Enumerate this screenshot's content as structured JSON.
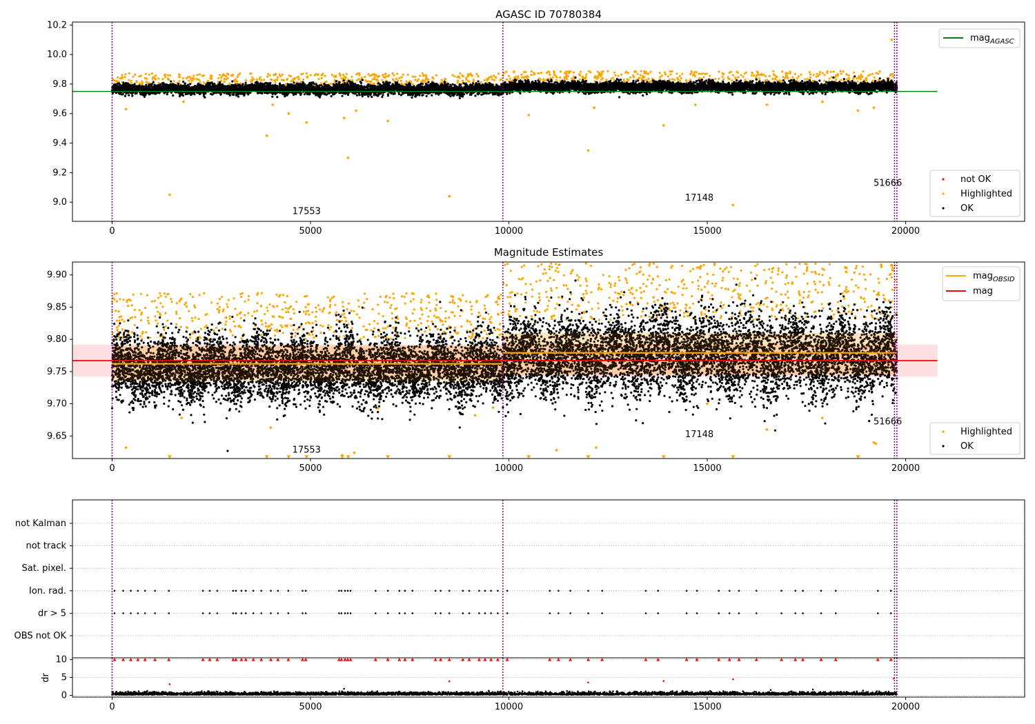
{
  "figure": {
    "style": {
      "ok": "#000000",
      "highlighted": "#ffa500",
      "not_ok": "#ff0000",
      "obs_line": "#800080",
      "agasc_line": "#008000",
      "mag_line": "#ff0000",
      "obsid_line": "#ffa500"
    }
  },
  "chart_data": [
    {
      "type": "scatter",
      "title": "AGASC ID 70780384",
      "xlim": [
        -1000,
        23000
      ],
      "ylim": [
        8.87,
        10.22
      ],
      "xticks": [
        0,
        5000,
        10000,
        15000,
        20000
      ],
      "yticks": [
        "9.0",
        "9.2",
        "9.4",
        "9.6",
        "9.8",
        "10.0",
        "10.2"
      ],
      "legend": {
        "location": "upper right",
        "entries": [
          {
            "label": "mag",
            "sub": "AGASC"
          }
        ]
      },
      "legend_lower": {
        "location": "lower right",
        "entries": [
          "not OK",
          "Highlighted",
          "OK"
        ]
      },
      "obs_boundaries": [
        0,
        9850,
        19720,
        19780
      ],
      "obs_labels": [
        {
          "text": "17553",
          "x": 4900,
          "y": 8.92
        },
        {
          "text": "17148",
          "x": 14800,
          "y": 9.01
        },
        {
          "text": "51666",
          "x": 19550,
          "y": 9.11
        }
      ],
      "mag_agasc": 9.75,
      "mag_agasc_x": [
        -1000,
        20800
      ],
      "series": [
        {
          "name": "OK",
          "segments": [
            {
              "x": [
                0,
                9850
              ],
              "y_center": 9.765,
              "spread": 0.03
            },
            {
              "x": [
                9850,
                19780
              ],
              "y_center": 9.78,
              "spread": 0.03
            }
          ]
        },
        {
          "name": "Highlighted",
          "x": [
            350,
            1450,
            1800,
            3900,
            4050,
            4450,
            4900,
            5850,
            5950,
            6150,
            6950,
            8500,
            10500,
            12000,
            12150,
            13900,
            14700,
            15650,
            16500,
            17900,
            18800,
            19200,
            19650
          ],
          "y": [
            9.63,
            9.05,
            9.68,
            9.45,
            9.66,
            9.6,
            9.54,
            9.57,
            9.3,
            9.62,
            9.55,
            9.04,
            9.59,
            9.35,
            9.64,
            9.52,
            9.66,
            8.98,
            9.66,
            9.68,
            9.62,
            9.64,
            10.1
          ]
        }
      ]
    },
    {
      "type": "scatter",
      "title": "Magnitude Estimates",
      "xlim": [
        -1000,
        23000
      ],
      "ylim": [
        9.615,
        9.92
      ],
      "xticks": [
        0,
        5000,
        10000,
        15000,
        20000
      ],
      "yticks": [
        "9.65",
        "9.70",
        "9.75",
        "9.80",
        "9.85",
        "9.90"
      ],
      "legend": {
        "location": "upper right",
        "entries": [
          {
            "label": "mag",
            "sub": "OBSID"
          },
          {
            "label": "mag",
            "sub": ""
          }
        ]
      },
      "legend_lower": {
        "location": "lower right",
        "entries": [
          "Highlighted",
          "OK"
        ]
      },
      "obs_boundaries": [
        0,
        9850,
        19720,
        19780
      ],
      "obs_labels": [
        {
          "text": "17553",
          "x": 4900,
          "y": 9.624
        },
        {
          "text": "17148",
          "x": 14800,
          "y": 9.648
        },
        {
          "text": "51666",
          "x": 19550,
          "y": 9.668
        }
      ],
      "mag": 9.767,
      "mag_band": [
        9.742,
        9.792
      ],
      "mag_x": [
        -1000,
        20800
      ],
      "mag_obsid": [
        {
          "x": [
            0,
            9850
          ],
          "y": 9.762,
          "band": [
            9.735,
            9.79
          ]
        },
        {
          "x": [
            9850,
            19780
          ],
          "y": 9.779,
          "band": [
            9.745,
            9.81
          ]
        }
      ],
      "series": [
        {
          "name": "OK",
          "segments": [
            {
              "x": [
                0,
                9850
              ],
              "y_center": 9.755,
              "spread": 0.045
            },
            {
              "x": [
                9850,
                19780
              ],
              "y_center": 9.775,
              "spread": 0.055
            }
          ]
        },
        {
          "name": "Highlighted",
          "x": [
            350,
            1750,
            4000,
            5800,
            6100,
            6700,
            9150,
            9600,
            11200,
            12200,
            15000,
            16500,
            17900,
            19200,
            19250
          ],
          "y": [
            9.632,
            9.678,
            9.663,
            9.62,
            9.624,
            9.693,
            9.682,
            9.694,
            9.628,
            9.632,
            9.7,
            9.66,
            9.678,
            9.64,
            9.638
          ]
        },
        {
          "name": "Highlighted-lower-limit",
          "x": [
            1450,
            3900,
            4450,
            4900,
            5800,
            5950,
            6950,
            8500,
            10500,
            12000,
            13900,
            15650,
            18800
          ],
          "y": [
            9.618,
            9.618,
            9.618,
            9.618,
            9.618,
            9.618,
            9.618,
            9.618,
            9.618,
            9.618,
            9.618,
            9.618,
            9.618
          ]
        }
      ]
    },
    {
      "type": "scatter",
      "title": "",
      "xlim": [
        -1000,
        23000
      ],
      "categories": [
        "OBS not OK",
        "dr > 5",
        "Ion. rad.",
        "Sat. pixel.",
        "not track",
        "not Kalman"
      ],
      "flag_rows": [
        {
          "name": "dr > 5",
          "x": [
            60,
            280,
            470,
            650,
            830,
            1080,
            1430,
            2290,
            2460,
            2650,
            3050,
            3120,
            3260,
            3370,
            3560,
            3760,
            4000,
            4180,
            4440,
            4800,
            4880,
            5720,
            5780,
            5870,
            5940,
            6010,
            6640,
            6950,
            7240,
            7380,
            7570,
            8150,
            8280,
            8500,
            8840,
            9000,
            9250,
            9400,
            9550,
            9720,
            9960,
            11030,
            11250,
            11550,
            12000,
            12350,
            13450,
            13760,
            14480,
            14740,
            15290,
            15560,
            15800,
            16240,
            16870,
            17220,
            17410,
            17870,
            18240,
            19300,
            19630
          ]
        },
        {
          "name": "Ion. rad.",
          "x": [
            60,
            280,
            470,
            650,
            830,
            1080,
            1430,
            2290,
            2460,
            2650,
            3050,
            3120,
            3260,
            3370,
            3560,
            3760,
            4000,
            4180,
            4440,
            4800,
            4880,
            5720,
            5780,
            5870,
            5940,
            6010,
            6640,
            6950,
            7240,
            7380,
            7570,
            8150,
            8280,
            8500,
            8840,
            9000,
            9250,
            9400,
            9550,
            9720,
            9960,
            11030,
            11250,
            11550,
            12000,
            12350,
            13450,
            13760,
            14480,
            14740,
            15290,
            15560,
            15800,
            16240,
            16870,
            17220,
            17410,
            17870,
            18240,
            19300,
            19630
          ]
        }
      ]
    },
    {
      "type": "scatter",
      "title": "",
      "ylabel": "dr",
      "xlim": [
        -1000,
        23000
      ],
      "ylim": [
        -0.5,
        10.5
      ],
      "xticks": [
        0,
        5000,
        10000,
        15000,
        20000
      ],
      "yticks": [
        "0",
        "5",
        "10"
      ],
      "series": [
        {
          "name": "OK",
          "y_center": 0.6,
          "spread": 0.6
        },
        {
          "name": "not OK",
          "x": [
            1450,
            8500,
            12000,
            13900,
            15650,
            19700
          ],
          "y": [
            3.1,
            3.9,
            3.6,
            4.0,
            4.5,
            4.7
          ]
        },
        {
          "name": "not OK (clipped)",
          "y": 10
        }
      ]
    }
  ]
}
